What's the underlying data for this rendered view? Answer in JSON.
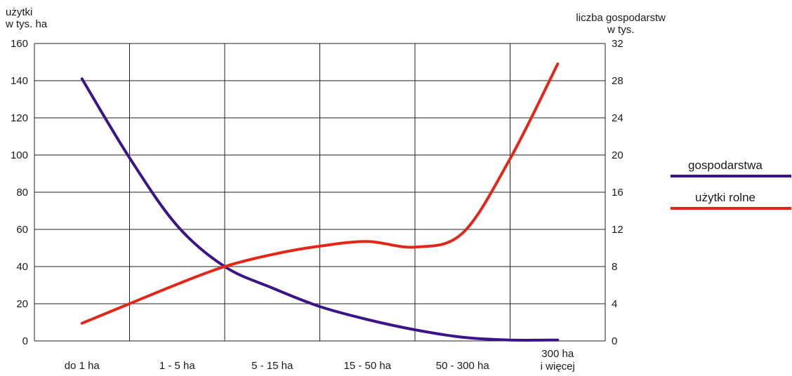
{
  "chart_data": {
    "type": "line",
    "categories": [
      "do 1 ha",
      "1 - 5 ha",
      "5 - 15 ha",
      "15 - 50 ha",
      "50 - 300 ha",
      "300 ha i więcej"
    ],
    "category_lines": [
      [
        "do 1 ha"
      ],
      [
        "1 - 5 ha"
      ],
      [
        "5 - 15 ha"
      ],
      [
        "15 - 50 ha"
      ],
      [
        "50 - 300 ha"
      ],
      [
        "300 ha",
        "i więcej"
      ]
    ],
    "y_left": {
      "label_lines": [
        "użytki",
        "w tys. ha"
      ],
      "ylim": [
        0,
        160
      ],
      "ticks": [
        "0",
        "20",
        "40",
        "60",
        "80",
        "100",
        "120",
        "140",
        "160"
      ]
    },
    "y_right": {
      "label_lines": [
        "liczba gospodarstw",
        "w tys."
      ],
      "ylim": [
        0,
        32
      ],
      "ticks": [
        "0",
        "4",
        "8",
        "12",
        "16",
        "20",
        "24",
        "28",
        "32"
      ]
    },
    "grid": true,
    "legend_position": "right",
    "series": [
      {
        "name": "gospodarstwa",
        "axis": "right",
        "color": "#3b1587",
        "x": [
          0,
          0.5,
          1,
          1.5,
          2,
          2.5,
          3,
          3.5,
          4,
          4.5,
          5
        ],
        "values": [
          28.2,
          19.7,
          12.4,
          8,
          5.7,
          3.7,
          2.3,
          1.2,
          0.4,
          0.1,
          0.1
        ]
      },
      {
        "name": "użytki rolne",
        "axis": "left",
        "color": "#e3261a",
        "x": [
          0,
          0.5,
          1,
          1.5,
          2,
          2.5,
          3,
          3.5,
          4,
          4.5,
          5
        ],
        "values": [
          9.5,
          20,
          30.5,
          40,
          46.5,
          51,
          53.5,
          50.5,
          58,
          98,
          149
        ]
      }
    ]
  }
}
